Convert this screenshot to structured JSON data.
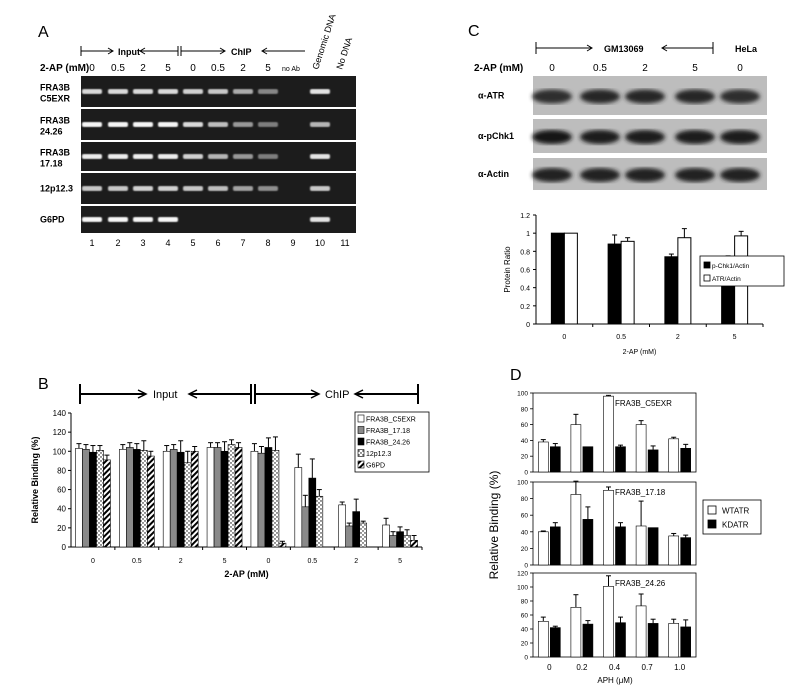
{
  "panelA": {
    "panel_letter": "A",
    "conc_label": "2-AP (mM)",
    "input_label": "Input",
    "chip_label": "ChIP",
    "conc_values": [
      "0",
      "0.5",
      "2",
      "5",
      "0",
      "0.5",
      "2",
      "5"
    ],
    "no_ab_label": "no Ab",
    "genomic_label": "Genomic DNA",
    "no_dna_label": "No DNA",
    "rows": [
      {
        "label1": "FRA3B",
        "label2": "C5EXR",
        "bands": [
          0.8,
          0.8,
          0.8,
          0.8,
          0.75,
          0.7,
          0.55,
          0.35,
          0,
          0.85,
          0
        ]
      },
      {
        "label1": "FRA3B",
        "label2": "24.26",
        "bands": [
          0.95,
          0.95,
          0.95,
          0.95,
          0.8,
          0.65,
          0.45,
          0.3,
          0,
          0.6,
          0
        ]
      },
      {
        "label1": "FRA3B",
        "label2": "17.18",
        "bands": [
          0.9,
          0.9,
          0.9,
          0.9,
          0.75,
          0.6,
          0.45,
          0.3,
          0,
          0.85,
          0
        ]
      },
      {
        "label1": "12p12.3",
        "label2": "",
        "bands": [
          0.7,
          0.7,
          0.75,
          0.75,
          0.7,
          0.65,
          0.5,
          0.4,
          0,
          0.7,
          0
        ]
      },
      {
        "label1": "G6PD",
        "label2": "",
        "bands": [
          0.95,
          0.95,
          0.95,
          0.95,
          0,
          0,
          0,
          0,
          0,
          0.85,
          0
        ]
      }
    ],
    "lane_numbers": [
      "1",
      "2",
      "3",
      "4",
      "5",
      "6",
      "7",
      "8",
      "9",
      "10",
      "11"
    ]
  },
  "panelC": {
    "panel_letter": "C",
    "cell_label": "GM13069",
    "hela_label": "HeLa",
    "conc_label": "2-AP (mM)",
    "conc_values": [
      "0",
      "0.5",
      "2",
      "5",
      "0"
    ],
    "blot_labels": [
      "α-ATR",
      "α-pChk1",
      "α-Actin"
    ]
  },
  "panelB": {
    "panel_letter": "B",
    "input_label": "Input",
    "chip_label": "ChIP"
  },
  "panelD": {
    "panel_letter": "D"
  },
  "chart_data": [
    {
      "id": "C",
      "type": "bar",
      "categories": [
        "0",
        "0.5",
        "2",
        "5"
      ],
      "series": [
        {
          "name": "p-Chk1/Actin",
          "color": "#000000",
          "values": [
            1.0,
            0.88,
            0.74,
            0.63
          ],
          "errors": [
            0,
            0.1,
            0.03,
            0.12
          ]
        },
        {
          "name": "ATR/Actin",
          "color": "#ffffff",
          "values": [
            1.0,
            0.91,
            0.95,
            0.97
          ],
          "errors": [
            0,
            0.04,
            0.1,
            0.05
          ]
        }
      ],
      "xlabel": "2-AP (mM)",
      "ylabel": "Protein Ratio",
      "ylim": [
        0,
        1.2
      ],
      "yticks": [
        "0",
        "0.2",
        "0.4",
        "0.6",
        "0.8",
        "1",
        "1.2"
      ]
    },
    {
      "id": "B",
      "type": "bar",
      "categories": [
        "0",
        "0.5",
        "2",
        "5",
        "0",
        "0.5",
        "2",
        "5"
      ],
      "series": [
        {
          "name": "FRA3B_C5EXR",
          "pattern": "white",
          "values": [
            103,
            102,
            100,
            104,
            100,
            83,
            44,
            23
          ],
          "errors": [
            5,
            5,
            6,
            5,
            8,
            14,
            3,
            7
          ]
        },
        {
          "name": "FRA3B_17.18",
          "pattern": "gray",
          "values": [
            102,
            104,
            102,
            104,
            98,
            42,
            22,
            12
          ],
          "errors": [
            5,
            5,
            5,
            5,
            7,
            12,
            3,
            4
          ]
        },
        {
          "name": "FRA3B_24.26",
          "pattern": "black",
          "values": [
            99,
            102,
            99,
            100,
            104,
            72,
            37,
            16
          ],
          "errors": [
            7,
            6,
            12,
            10,
            10,
            20,
            13,
            5
          ]
        },
        {
          "name": "12p12.3",
          "pattern": "dots",
          "values": [
            101,
            101,
            88,
            107,
            101,
            53,
            25,
            12
          ],
          "errors": [
            5,
            10,
            12,
            5,
            14,
            7,
            2,
            6
          ]
        },
        {
          "name": "G6PD",
          "pattern": "hatch",
          "values": [
            91,
            95,
            100,
            104,
            4,
            0,
            0,
            7
          ],
          "errors": [
            5,
            5,
            5,
            5,
            2,
            0,
            0,
            5
          ]
        }
      ],
      "xlabel": "2-AP (mM)",
      "ylabel": "Relative Binding (%)",
      "ylim": [
        0,
        140
      ],
      "yticks": [
        "0",
        "20",
        "40",
        "60",
        "80",
        "100",
        "120",
        "140"
      ]
    },
    {
      "id": "D",
      "type": "bar",
      "categories": [
        "0",
        "0.2",
        "0.4",
        "0.7",
        "1.0"
      ],
      "xlabel": "APH (μM)",
      "ylabel": "Relative Binding (%)",
      "legend": [
        {
          "name": "WTATR",
          "color": "#ffffff"
        },
        {
          "name": "KDATR",
          "color": "#000000"
        }
      ],
      "subplots": [
        {
          "title": "FRA3B_C5EXR",
          "ylim": [
            0,
            100
          ],
          "yticks": [
            "0",
            "20",
            "40",
            "60",
            "80",
            "100"
          ],
          "series": [
            {
              "name": "WTATR",
              "values": [
                38,
                60,
                96,
                60,
                42
              ],
              "errors": [
                3,
                13,
                1,
                5,
                2
              ]
            },
            {
              "name": "KDATR",
              "values": [
                32,
                32,
                32,
                28,
                30
              ],
              "errors": [
                4,
                0,
                2,
                5,
                5
              ]
            }
          ]
        },
        {
          "title": "FRA3B_17.18",
          "ylim": [
            0,
            100
          ],
          "yticks": [
            "0",
            "20",
            "40",
            "60",
            "80",
            "100"
          ],
          "series": [
            {
              "name": "WTATR",
              "values": [
                40,
                85,
                90,
                47,
                35
              ],
              "errors": [
                1,
                16,
                4,
                30,
                3
              ]
            },
            {
              "name": "KDATR",
              "values": [
                46,
                55,
                46,
                45,
                33
              ],
              "errors": [
                5,
                15,
                5,
                0,
                3
              ]
            }
          ]
        },
        {
          "title": "FRA3B_24.26",
          "ylim": [
            0,
            120
          ],
          "yticks": [
            "0",
            "20",
            "40",
            "60",
            "80",
            "100",
            "120"
          ],
          "series": [
            {
              "name": "WTATR",
              "values": [
                51,
                71,
                101,
                73,
                48
              ],
              "errors": [
                6,
                18,
                15,
                17,
                6
              ]
            },
            {
              "name": "KDATR",
              "values": [
                42,
                47,
                49,
                48,
                43
              ],
              "errors": [
                2,
                5,
                8,
                6,
                10
              ]
            }
          ]
        }
      ]
    }
  ]
}
